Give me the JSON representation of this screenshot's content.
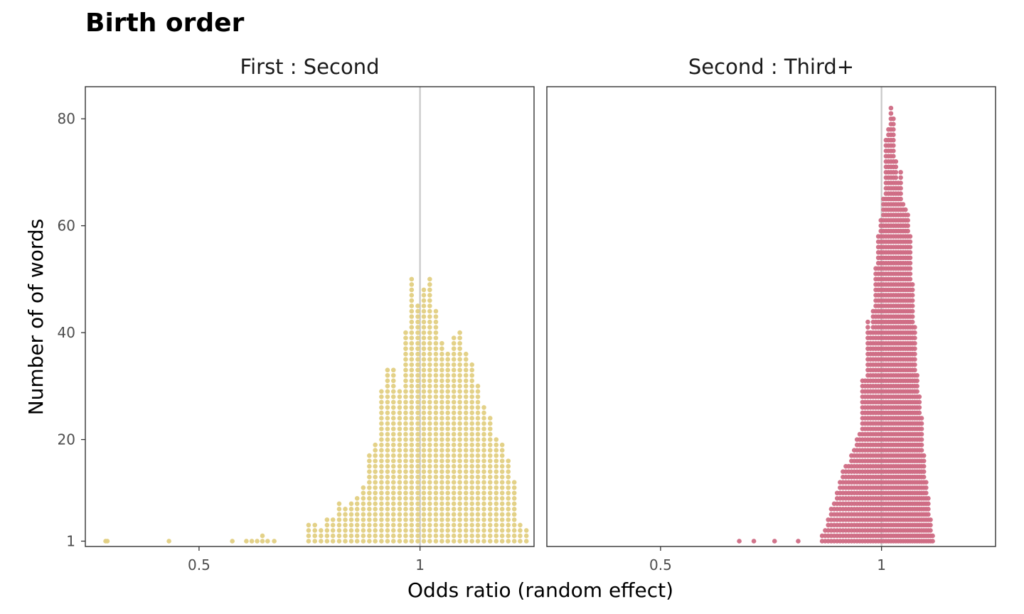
{
  "title": "Birth order",
  "xlabel": "Odds ratio (random effect)",
  "ylabel": "Number of of words",
  "reference_line_color": "#c8c8c8",
  "chart_data": [
    {
      "type": "dotplot",
      "panel": "First : Second",
      "color": "#e2cf82",
      "x_scale": "log",
      "xlim": [
        0.35,
        1.43
      ],
      "ylim": [
        0,
        86
      ],
      "y_ticks": [
        1,
        20,
        40,
        60,
        80
      ],
      "x_ticks": [
        0.5,
        1
      ],
      "x_tick_labels": [
        "0.5",
        "1"
      ],
      "reference_line_x": 1,
      "x": [
        0.373,
        0.375,
        0.455,
        0.555,
        0.58,
        0.59,
        0.6,
        0.61,
        0.62,
        0.633,
        0.705,
        0.719,
        0.733,
        0.747,
        0.761,
        0.776,
        0.791,
        0.806,
        0.821,
        0.837,
        0.853,
        0.869,
        0.886,
        0.903,
        0.92,
        0.938,
        0.956,
        0.974,
        0.993,
        1.012,
        1.031,
        1.051,
        1.071,
        1.091,
        1.112,
        1.133,
        1.155,
        1.177,
        1.199,
        1.222,
        1.246,
        1.27,
        1.294,
        1.319,
        1.344,
        1.369,
        1.396
      ],
      "counts": [
        1,
        1,
        1,
        1,
        1,
        1,
        1,
        2,
        1,
        1,
        4,
        4,
        3,
        5,
        5,
        8,
        7,
        8,
        9,
        11,
        17,
        19,
        29,
        33,
        33,
        29,
        40,
        50,
        45,
        48,
        50,
        44,
        38,
        36,
        39,
        40,
        36,
        34,
        30,
        26,
        24,
        20,
        19,
        16,
        12,
        4,
        3
      ]
    },
    {
      "type": "dotplot",
      "panel": "Second : Third+",
      "color": "#cf6b84",
      "x_scale": "log",
      "xlim": [
        0.35,
        1.43
      ],
      "ylim": [
        0,
        86
      ],
      "y_ticks": [
        1,
        20,
        40,
        60,
        80
      ],
      "x_ticks": [
        0.5,
        1
      ],
      "x_tick_labels": [
        "0.5",
        "1"
      ],
      "reference_line_x": 1,
      "x": [
        0.64,
        0.67,
        0.715,
        0.77,
        0.83,
        0.838,
        0.846,
        0.854,
        0.862,
        0.87,
        0.878,
        0.886,
        0.894,
        0.902,
        0.91,
        0.918,
        0.926,
        0.934,
        0.942,
        0.95,
        0.958,
        0.966,
        0.974,
        0.982,
        0.99,
        0.998,
        1.006,
        1.014,
        1.022,
        1.03,
        1.038,
        1.046,
        1.054,
        1.062,
        1.07,
        1.078,
        1.086,
        1.094,
        1.102,
        1.11,
        1.118,
        1.126,
        1.134,
        1.142,
        1.15,
        1.158,
        1.166,
        1.174
      ],
      "counts": [
        1,
        1,
        1,
        1,
        2,
        3,
        5,
        7,
        8,
        10,
        12,
        14,
        15,
        15,
        17,
        18,
        20,
        21,
        31,
        31,
        42,
        40,
        44,
        52,
        58,
        61,
        65,
        76,
        78,
        82,
        80,
        72,
        68,
        70,
        64,
        63,
        62,
        58,
        49,
        41,
        32,
        28,
        24,
        17,
        12,
        9,
        5,
        2
      ]
    }
  ]
}
